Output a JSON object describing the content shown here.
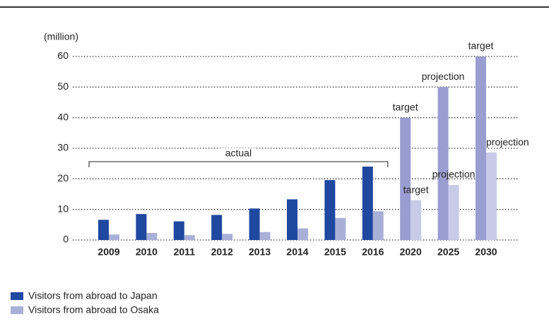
{
  "chart_data": {
    "type": "bar",
    "unit_label": "(million)",
    "categories": [
      "2009",
      "2010",
      "2011",
      "2012",
      "2013",
      "2014",
      "2015",
      "2016",
      "2020",
      "2025",
      "2030"
    ],
    "series": [
      {
        "name": "Visitors from abroad to Japan",
        "color": "#1f48a0",
        "values": [
          6.6,
          8.5,
          6.1,
          8.2,
          10.3,
          13.3,
          19.6,
          24.0,
          40,
          50,
          60
        ],
        "colors": [
          "#1f48a0",
          "#1f48a0",
          "#1f48a0",
          "#1f48a0",
          "#1f48a0",
          "#1f48a0",
          "#1f48a0",
          "#1f48a0",
          "#9a9dd0",
          "#9a9dd0",
          "#9a9dd0"
        ],
        "point_labels": [
          null,
          null,
          null,
          null,
          null,
          null,
          null,
          null,
          "target",
          "projection",
          "target"
        ]
      },
      {
        "name": "Visitors from abroad to Osaka",
        "color": "#a9b0d8",
        "values": [
          1.8,
          2.3,
          1.6,
          2.0,
          2.6,
          3.8,
          7.2,
          9.4,
          13,
          18,
          28.6
        ],
        "colors": [
          "#a9b0d8",
          "#a9b0d8",
          "#a9b0d8",
          "#a9b0d8",
          "#a9b0d8",
          "#a9b0d8",
          "#a9b0d8",
          "#a9b0d8",
          "#c8cbe8",
          "#c8cbe8",
          "#c8cbe8"
        ],
        "point_labels": [
          null,
          null,
          null,
          null,
          null,
          null,
          null,
          null,
          "target",
          "projection",
          "projection"
        ]
      }
    ],
    "bracket_label": "actual",
    "ylim": [
      0,
      60
    ],
    "yticks": [
      0,
      10,
      20,
      30,
      40,
      50,
      60
    ],
    "grid": true
  }
}
